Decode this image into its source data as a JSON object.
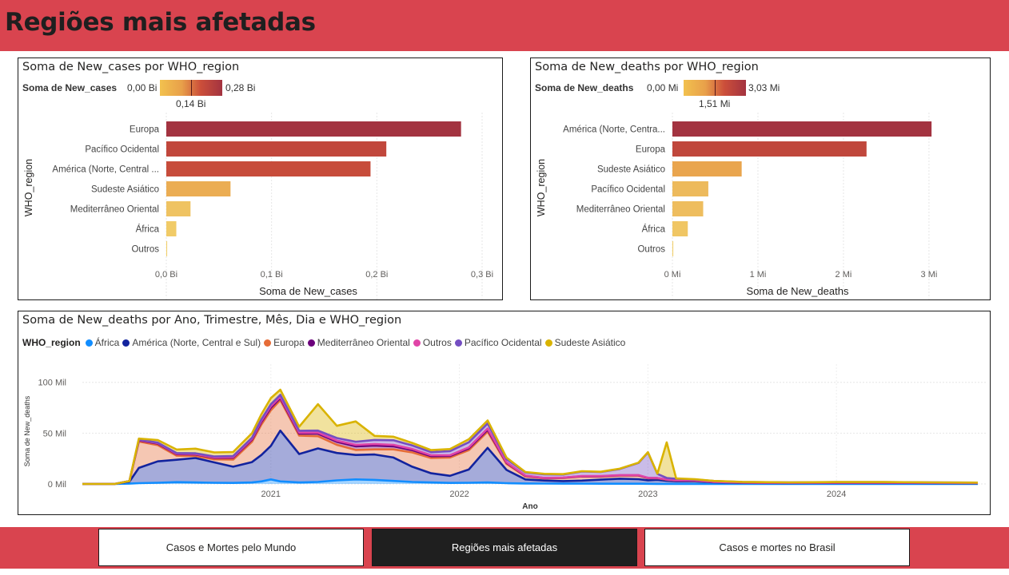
{
  "page": {
    "title": "Regiões mais afetadas"
  },
  "cases_chart": {
    "title": "Soma de New_cases por WHO_region",
    "legend_title": "Soma de New_cases",
    "legend_min": "0,00 Bi",
    "legend_max": "0,28 Bi",
    "legend_mid": "0,14 Bi",
    "y_axis_title": "WHO_region",
    "x_axis_title": "Soma de New_cases",
    "x_ticks": [
      "0,0 Bi",
      "0,1 Bi",
      "0,2 Bi",
      "0,3 Bi"
    ]
  },
  "deaths_chart": {
    "title": "Soma de New_deaths por WHO_region",
    "legend_title": "Soma de New_deaths",
    "legend_min": "0,00 Mi",
    "legend_max": "3,03 Mi",
    "legend_mid": "1,51 Mi",
    "y_axis_title": "WHO_region",
    "x_axis_title": "Soma de New_deaths",
    "x_ticks": [
      "0 Mi",
      "1 Mi",
      "2 Mi",
      "3 Mi"
    ]
  },
  "area_chart": {
    "title": "Soma de New_deaths por Ano, Trimestre, Mês, Dia e WHO_region",
    "legend_title": "WHO_region",
    "y_axis_title": "Soma de New_deaths",
    "x_axis_title": "Ano",
    "y_ticks": [
      "100 Mil",
      "50 Mil",
      "0 Mil"
    ],
    "x_ticks": [
      "2021",
      "2022",
      "2023",
      "2024"
    ]
  },
  "nav": {
    "btn1": "Casos e Mortes pelo Mundo",
    "btn2": "Regiões mais afetadas",
    "btn3": "Casos e mortes no Brasil"
  },
  "colors": {
    "header": "#d9444f",
    "africa": "#118dff",
    "america": "#12239e",
    "europa": "#e66c37",
    "mediterraneo": "#6b007b",
    "outros": "#e044a7",
    "pacifico": "#744ec2",
    "sudeste": "#d9b300"
  },
  "chart_data": [
    {
      "type": "bar",
      "orientation": "horizontal",
      "title": "Soma de New_cases por WHO_region",
      "xlabel": "Soma de New_cases",
      "ylabel": "WHO_region",
      "unit": "Bi",
      "xlim": [
        0,
        0.3
      ],
      "categories": [
        "Europa",
        "Pacífico Ocidental",
        "América (Norte, Central ...",
        "Sudeste Asiático",
        "Mediterrâneo Oriental",
        "África",
        "Outros"
      ],
      "values": [
        0.28,
        0.209,
        0.194,
        0.061,
        0.023,
        0.0095,
        0.0008
      ]
    },
    {
      "type": "bar",
      "orientation": "horizontal",
      "title": "Soma de New_deaths por WHO_region",
      "xlabel": "Soma de New_deaths",
      "ylabel": "WHO_region",
      "unit": "Mi",
      "xlim": [
        0,
        3.3
      ],
      "categories": [
        "América (Norte, Centra...",
        "Europa",
        "Sudeste Asiático",
        "Pacífico Ocidental",
        "Mediterrâneo Oriental",
        "África",
        "Outros"
      ],
      "values": [
        3.03,
        2.27,
        0.81,
        0.42,
        0.36,
        0.18,
        0.01
      ]
    },
    {
      "type": "area",
      "stacked": true,
      "title": "Soma de New_deaths por Ano, Trimestre, Mês, Dia e WHO_region",
      "xlabel": "Ano",
      "ylabel": "Soma de New_deaths",
      "ylim": [
        0,
        110000
      ],
      "x": [
        2020.0,
        2020.1,
        2020.17,
        2020.25,
        2020.3,
        2020.4,
        2020.5,
        2020.6,
        2020.7,
        2020.8,
        2020.9,
        2020.95,
        2021.0,
        2021.05,
        2021.15,
        2021.25,
        2021.35,
        2021.45,
        2021.55,
        2021.65,
        2021.75,
        2021.85,
        2021.95,
        2022.05,
        2022.15,
        2022.25,
        2022.35,
        2022.45,
        2022.55,
        2022.65,
        2022.75,
        2022.85,
        2022.95,
        2023.0,
        2023.05,
        2023.1,
        2023.15,
        2023.25,
        2023.35,
        2023.5,
        2023.75,
        2024.0,
        2024.25,
        2024.5,
        2024.75
      ],
      "series": [
        {
          "name": "África",
          "values": [
            0,
            0,
            0,
            300,
            800,
            1200,
            1800,
            1500,
            1200,
            1000,
            1500,
            2500,
            4500,
            2500,
            1500,
            2000,
            3500,
            4500,
            4000,
            3000,
            2000,
            1500,
            1000,
            1200,
            1500,
            800,
            500,
            400,
            300,
            300,
            250,
            200,
            200,
            150,
            100,
            100,
            80,
            60,
            50,
            40,
            30,
            30,
            30,
            30,
            30
          ]
        },
        {
          "name": "América (Norte, Central e Sul)",
          "values": [
            0,
            0,
            0,
            2000,
            15000,
            21000,
            22000,
            24000,
            20000,
            16000,
            20000,
            26000,
            33000,
            50000,
            28000,
            33000,
            27000,
            24000,
            25000,
            23000,
            15000,
            9000,
            7000,
            13000,
            34000,
            13000,
            4000,
            3000,
            2500,
            3000,
            4000,
            5000,
            4500,
            3500,
            4000,
            3000,
            2500,
            2500,
            1500,
            1000,
            800,
            900,
            900,
            800,
            700
          ]
        },
        {
          "name": "Europa",
          "values": [
            0,
            0,
            0,
            500,
            26000,
            16000,
            4000,
            2000,
            3000,
            7000,
            20000,
            30000,
            35000,
            30000,
            18000,
            12000,
            8000,
            5000,
            5000,
            8000,
            14000,
            15000,
            18000,
            19000,
            16000,
            6000,
            3000,
            2000,
            3000,
            4000,
            3000,
            3000,
            3500,
            2000,
            1500,
            1000,
            800,
            700,
            400,
            300,
            200,
            300,
            300,
            200,
            200
          ]
        },
        {
          "name": "Mediterrâneo Oriental",
          "values": [
            0,
            0,
            0,
            0,
            1000,
            1500,
            1500,
            1500,
            1500,
            1800,
            2000,
            2500,
            2500,
            2000,
            2000,
            2500,
            3000,
            3500,
            3800,
            3000,
            2200,
            1800,
            1500,
            1800,
            1800,
            1000,
            500,
            400,
            300,
            300,
            300,
            300,
            300,
            250,
            200,
            200,
            150,
            100,
            80,
            60,
            50,
            50,
            50,
            50,
            50
          ]
        },
        {
          "name": "Outros",
          "values": [
            0,
            0,
            0,
            0,
            500,
            500,
            500,
            500,
            500,
            700,
            1000,
            1200,
            1500,
            1200,
            1000,
            1000,
            1200,
            1500,
            1500,
            1500,
            1200,
            1000,
            800,
            1000,
            1200,
            600,
            300,
            200,
            200,
            200,
            200,
            200,
            200,
            150,
            100,
            100,
            80,
            60,
            50,
            40,
            30,
            30,
            30,
            30,
            30
          ]
        },
        {
          "name": "Pacífico Ocidental",
          "values": [
            0,
            0,
            0,
            0,
            300,
            500,
            600,
            700,
            800,
            900,
            1000,
            1500,
            2000,
            2000,
            1800,
            2000,
            2500,
            3000,
            4000,
            4500,
            3500,
            3000,
            4000,
            5000,
            5000,
            3000,
            3000,
            3500,
            3000,
            4500,
            4000,
            6000,
            12000,
            25000,
            4000,
            1500,
            1500,
            1000,
            800,
            500,
            400,
            500,
            500,
            400,
            300
          ]
        },
        {
          "name": "Sudeste Asiático",
          "values": [
            0,
            0,
            0,
            0,
            1000,
            2500,
            3500,
            4500,
            4000,
            4000,
            4500,
            5000,
            6000,
            5000,
            4000,
            26000,
            12000,
            20000,
            4000,
            3500,
            2500,
            2000,
            2000,
            3000,
            3000,
            1500,
            500,
            500,
            400,
            300,
            300,
            300,
            300,
            250,
            200,
            35000,
            300,
            200,
            100,
            80,
            60,
            60,
            60,
            60,
            60
          ]
        }
      ]
    }
  ]
}
